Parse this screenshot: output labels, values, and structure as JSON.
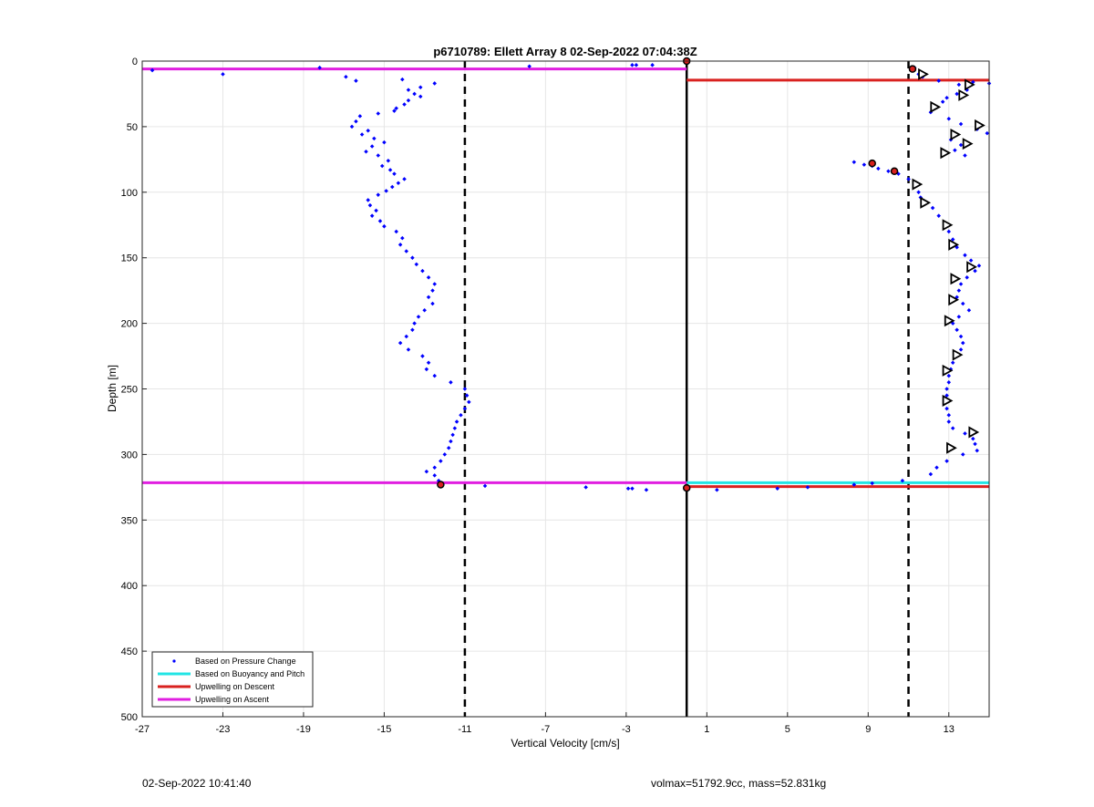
{
  "chart_data": {
    "type": "scatter",
    "title": "p6710789: Ellett Array 8 02-Sep-2022 07:04:38Z",
    "xlabel": "Vertical Velocity [cm/s]",
    "ylabel": "Depth [m]",
    "xlim": [
      -27,
      15
    ],
    "ylim": [
      0,
      500
    ],
    "y_reversed": true,
    "grid": true,
    "xticks": [
      -27,
      -23,
      -19,
      -15,
      -11,
      -7,
      -3,
      1,
      5,
      9,
      13
    ],
    "yticks": [
      0,
      50,
      100,
      150,
      200,
      250,
      300,
      350,
      400,
      450,
      500
    ],
    "legend_position": "bottom-left",
    "legend": [
      {
        "label": "Based on Pressure Change",
        "color": "#0000ff",
        "style": "dot"
      },
      {
        "label": "Based on Buoyancy and Pitch",
        "color": "#22e5e5",
        "style": "line"
      },
      {
        "label": "Upwelling on Descent",
        "color": "#d9211f",
        "style": "line"
      },
      {
        "label": "Upwelling on Ascent",
        "color": "#e01fe0",
        "style": "line"
      }
    ],
    "vertical_lines": [
      {
        "x": -11,
        "style": "dashed"
      },
      {
        "x": 0,
        "style": "solid"
      },
      {
        "x": 11,
        "style": "dashed"
      }
    ],
    "series": [
      {
        "name": "Based on Pressure Change",
        "color": "#0000ff",
        "points": [
          [
            -26.5,
            7
          ],
          [
            -23,
            10
          ],
          [
            -18.2,
            5
          ],
          [
            -7.8,
            4
          ],
          [
            -2.7,
            3
          ],
          [
            -2.5,
            3
          ],
          [
            -1.7,
            3
          ],
          [
            -16.9,
            12
          ],
          [
            -16.4,
            15
          ],
          [
            -14.1,
            14
          ],
          [
            -12.5,
            17
          ],
          [
            -13.2,
            20
          ],
          [
            -13.8,
            22
          ],
          [
            -13.5,
            25
          ],
          [
            -13.2,
            27
          ],
          [
            -13.8,
            30
          ],
          [
            -14,
            33
          ],
          [
            -14.4,
            36
          ],
          [
            -14.5,
            38
          ],
          [
            -15.3,
            40
          ],
          [
            -16.2,
            42
          ],
          [
            -16.4,
            46
          ],
          [
            -16.6,
            50
          ],
          [
            -15.8,
            53
          ],
          [
            -16.1,
            56
          ],
          [
            -15.5,
            59
          ],
          [
            -15,
            62
          ],
          [
            -15.6,
            65
          ],
          [
            -15.9,
            69
          ],
          [
            -15.3,
            72
          ],
          [
            -14.8,
            76
          ],
          [
            -15.1,
            80
          ],
          [
            -14.7,
            83
          ],
          [
            -14.5,
            86
          ],
          [
            -14,
            90
          ],
          [
            -14.3,
            93
          ],
          [
            -14.6,
            96
          ],
          [
            -14.9,
            99
          ],
          [
            -15.3,
            102
          ],
          [
            -15.8,
            106
          ],
          [
            -15.7,
            110
          ],
          [
            -15.4,
            114
          ],
          [
            -15.6,
            118
          ],
          [
            -15.2,
            122
          ],
          [
            -15,
            126
          ],
          [
            -14.4,
            130
          ],
          [
            -14.1,
            135
          ],
          [
            -14.2,
            140
          ],
          [
            -13.9,
            145
          ],
          [
            -13.6,
            150
          ],
          [
            -13.4,
            155
          ],
          [
            -13.1,
            160
          ],
          [
            -12.8,
            165
          ],
          [
            -12.5,
            170
          ],
          [
            -12.6,
            175
          ],
          [
            -12.8,
            180
          ],
          [
            -12.6,
            185
          ],
          [
            -13,
            190
          ],
          [
            -13.3,
            195
          ],
          [
            -13.5,
            200
          ],
          [
            -13.6,
            205
          ],
          [
            -13.9,
            210
          ],
          [
            -14.2,
            215
          ],
          [
            -13.8,
            220
          ],
          [
            -13.1,
            225
          ],
          [
            -12.8,
            230
          ],
          [
            -12.9,
            235
          ],
          [
            -12.5,
            240
          ],
          [
            -11.7,
            245
          ],
          [
            -11,
            250
          ],
          [
            -10.9,
            255
          ],
          [
            -10.8,
            260
          ],
          [
            -11,
            265
          ],
          [
            -11.2,
            270
          ],
          [
            -11.4,
            275
          ],
          [
            -11.5,
            280
          ],
          [
            -11.6,
            285
          ],
          [
            -11.7,
            290
          ],
          [
            -11.8,
            295
          ],
          [
            -12,
            300
          ],
          [
            -12.2,
            305
          ],
          [
            -12.5,
            310
          ],
          [
            -12.9,
            313
          ],
          [
            -12.5,
            316
          ],
          [
            -12.3,
            320
          ],
          [
            -10,
            324
          ],
          [
            -5,
            325
          ],
          [
            -2.9,
            326
          ],
          [
            -2.7,
            326
          ],
          [
            -2,
            327
          ],
          [
            1.5,
            327
          ],
          [
            4.5,
            326
          ],
          [
            6,
            325
          ],
          [
            8.3,
            323
          ],
          [
            9.2,
            322
          ],
          [
            10.7,
            320
          ],
          [
            11.3,
            5
          ],
          [
            11.5,
            10
          ],
          [
            11.7,
            12
          ],
          [
            12.5,
            15
          ],
          [
            13.5,
            18
          ],
          [
            14.2,
            16
          ],
          [
            15,
            17
          ],
          [
            13.9,
            22
          ],
          [
            13.4,
            25
          ],
          [
            12.9,
            28
          ],
          [
            12.7,
            31
          ],
          [
            12.3,
            35
          ],
          [
            12.1,
            39
          ],
          [
            13,
            44
          ],
          [
            13.6,
            48
          ],
          [
            14.4,
            52
          ],
          [
            14.9,
            55
          ],
          [
            13.1,
            60
          ],
          [
            13.6,
            64
          ],
          [
            13.3,
            68
          ],
          [
            13.8,
            72
          ],
          [
            8.3,
            77
          ],
          [
            8.8,
            79
          ],
          [
            9.2,
            80
          ],
          [
            9.5,
            82
          ],
          [
            10,
            84
          ],
          [
            10.5,
            86
          ],
          [
            11,
            90
          ],
          [
            11.3,
            95
          ],
          [
            11.5,
            100
          ],
          [
            11.6,
            104
          ],
          [
            11.8,
            108
          ],
          [
            12.2,
            112
          ],
          [
            12.5,
            118
          ],
          [
            12.8,
            124
          ],
          [
            13,
            130
          ],
          [
            13.2,
            136
          ],
          [
            13.4,
            142
          ],
          [
            13.8,
            148
          ],
          [
            14.1,
            152
          ],
          [
            14.5,
            156
          ],
          [
            14.3,
            160
          ],
          [
            13.9,
            165
          ],
          [
            13.6,
            170
          ],
          [
            13.5,
            175
          ],
          [
            13.4,
            180
          ],
          [
            13.7,
            185
          ],
          [
            14,
            190
          ],
          [
            13.5,
            195
          ],
          [
            13.2,
            200
          ],
          [
            13.4,
            205
          ],
          [
            13.6,
            210
          ],
          [
            13.7,
            215
          ],
          [
            13.6,
            220
          ],
          [
            13.4,
            225
          ],
          [
            13.2,
            230
          ],
          [
            13.1,
            235
          ],
          [
            13,
            240
          ],
          [
            13,
            245
          ],
          [
            12.9,
            250
          ],
          [
            12.9,
            255
          ],
          [
            12.8,
            260
          ],
          [
            12.9,
            265
          ],
          [
            13,
            270
          ],
          [
            13,
            275
          ],
          [
            13.2,
            280
          ],
          [
            13.8,
            284
          ],
          [
            14.2,
            288
          ],
          [
            14.3,
            292
          ],
          [
            14.4,
            297
          ],
          [
            13.7,
            300
          ],
          [
            12.9,
            305
          ],
          [
            12.4,
            310
          ],
          [
            12.1,
            315
          ]
        ]
      },
      {
        "name": "Based on Buoyancy and Pitch",
        "color": "#22e5e5",
        "lines": [
          {
            "y": 321.5,
            "x0": 0,
            "x1": 15
          }
        ]
      },
      {
        "name": "Upwelling on Descent",
        "color": "#d9211f",
        "lines": [
          {
            "y": 14.5,
            "x0": 0,
            "x1": 15
          },
          {
            "y": 324.5,
            "x0": 0,
            "x1": 15
          }
        ]
      },
      {
        "name": "Upwelling on Ascent",
        "color": "#e01fe0",
        "lines": [
          {
            "y": 6,
            "x0": -27,
            "x1": 0
          },
          {
            "y": 321.5,
            "x0": -27,
            "x1": 0
          }
        ]
      }
    ],
    "markers": {
      "red_filled": [
        [
          0,
          0
        ],
        [
          11.2,
          6
        ],
        [
          9.2,
          78
        ],
        [
          10.3,
          84
        ],
        [
          -12.2,
          323
        ],
        [
          0,
          325.5
        ]
      ],
      "triangles_right": [
        [
          11.7,
          10
        ],
        [
          14,
          18
        ],
        [
          13.7,
          26
        ],
        [
          12.3,
          35
        ],
        [
          14.5,
          49
        ],
        [
          13.3,
          56
        ],
        [
          13.9,
          63
        ],
        [
          12.8,
          70
        ],
        [
          11.4,
          94
        ],
        [
          11.8,
          108
        ],
        [
          12.9,
          125
        ],
        [
          13.2,
          140
        ],
        [
          14.1,
          157
        ],
        [
          13.3,
          166
        ],
        [
          13.2,
          182
        ],
        [
          13,
          198
        ],
        [
          13.4,
          224
        ],
        [
          12.9,
          236
        ],
        [
          12.9,
          259
        ],
        [
          14.2,
          283
        ],
        [
          13.1,
          295
        ]
      ]
    }
  },
  "footer": {
    "left": "02-Sep-2022 10:41:40",
    "right": "volmax=51792.9cc, mass=52.831kg"
  }
}
